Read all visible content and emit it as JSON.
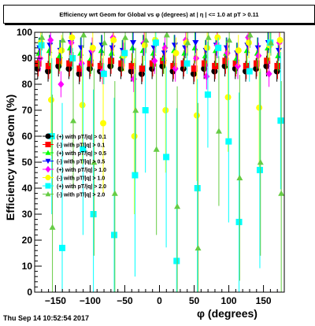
{
  "title": "Efficiency wrt Geom for Global vs φ (degrees) at | η | <= 1.0 at pT > 0.11",
  "footer": "Thu Sep 14 10:52:54 2017",
  "chart_data": {
    "type": "scatter",
    "xlabel": "φ (degrees)",
    "ylabel": "Efficiency wrt Geom (%)",
    "xlim": [
      -180,
      180
    ],
    "ylim": [
      0,
      100
    ],
    "xticks": [
      -150,
      -100,
      -50,
      0,
      50,
      100,
      150
    ],
    "yticks": [
      0,
      10,
      20,
      30,
      40,
      50,
      60,
      70,
      80,
      90,
      100
    ],
    "grid": false,
    "legend_position": "middle-left",
    "series": [
      {
        "name": "(+) with pT/|q| > 0.1",
        "color": "#000000",
        "marker": "circle",
        "values": [
          86,
          85,
          87,
          86,
          84,
          86,
          85,
          87,
          86,
          85,
          84,
          86,
          87,
          85,
          86,
          84,
          86,
          85,
          87,
          86,
          85,
          86,
          87,
          85
        ]
      },
      {
        "name": "(-) with pT/|q| > 0.1",
        "color": "#ff0000",
        "marker": "square",
        "values": [
          88,
          87,
          89,
          88,
          86,
          88,
          87,
          89,
          88,
          87,
          86,
          88,
          89,
          87,
          88,
          86,
          88,
          87,
          89,
          88,
          87,
          88,
          89,
          87
        ]
      },
      {
        "name": "(+) with pT/|q| > 0.5",
        "color": "#00ff00",
        "marker": "triangle-up",
        "values": [
          92,
          93,
          91,
          94,
          92,
          90,
          93,
          92,
          91,
          94,
          93,
          92,
          90,
          93,
          92,
          94,
          91,
          93,
          92,
          90,
          93,
          92,
          94,
          91
        ]
      },
      {
        "name": "(-) with pT/|q| > 0.5",
        "color": "#0000ff",
        "marker": "triangle-down",
        "values": [
          94,
          95,
          93,
          96,
          94,
          92,
          95,
          94,
          93,
          96,
          95,
          94,
          92,
          95,
          94,
          96,
          93,
          95,
          94,
          92,
          95,
          94,
          96,
          93
        ]
      },
      {
        "name": "(+) with pT/|q| > 1.0",
        "color": "#ff00ff",
        "marker": "diamond",
        "values": [
          90,
          97,
          80,
          96,
          88,
          93,
          85,
          98,
          91,
          82,
          96,
          89,
          94,
          86,
          97,
          90,
          83,
          95,
          92,
          87,
          98,
          91,
          84,
          96
        ]
      },
      {
        "name": "(-) with pT/|q| > 1.0",
        "color": "#ffff00",
        "marker": "circle-open",
        "values": [
          96,
          74,
          93,
          98,
          72,
          94,
          65,
          97,
          91,
          60,
          95,
          97,
          70,
          92,
          96,
          68,
          94,
          98,
          75,
          93,
          96,
          71,
          95,
          97
        ]
      },
      {
        "name": "(+) with pT/|q| > 2.0",
        "color": "#00ffff",
        "marker": "square-open",
        "values": [
          95,
          60,
          17,
          90,
          55,
          30,
          84,
          22,
          92,
          45,
          70,
          96,
          52,
          12,
          88,
          40,
          76,
          94,
          58,
          27,
          85,
          47,
          96,
          66
        ]
      },
      {
        "name": "(-) with pT/|q| > 2.0",
        "color": "#66cc44",
        "marker": "triangle-up-open",
        "values": [
          98,
          25,
          97,
          66,
          99,
          50,
          96,
          38,
          98,
          70,
          97,
          55,
          99,
          33,
          96,
          17,
          98,
          62,
          97,
          44,
          99,
          50,
          96,
          38
        ]
      }
    ]
  }
}
